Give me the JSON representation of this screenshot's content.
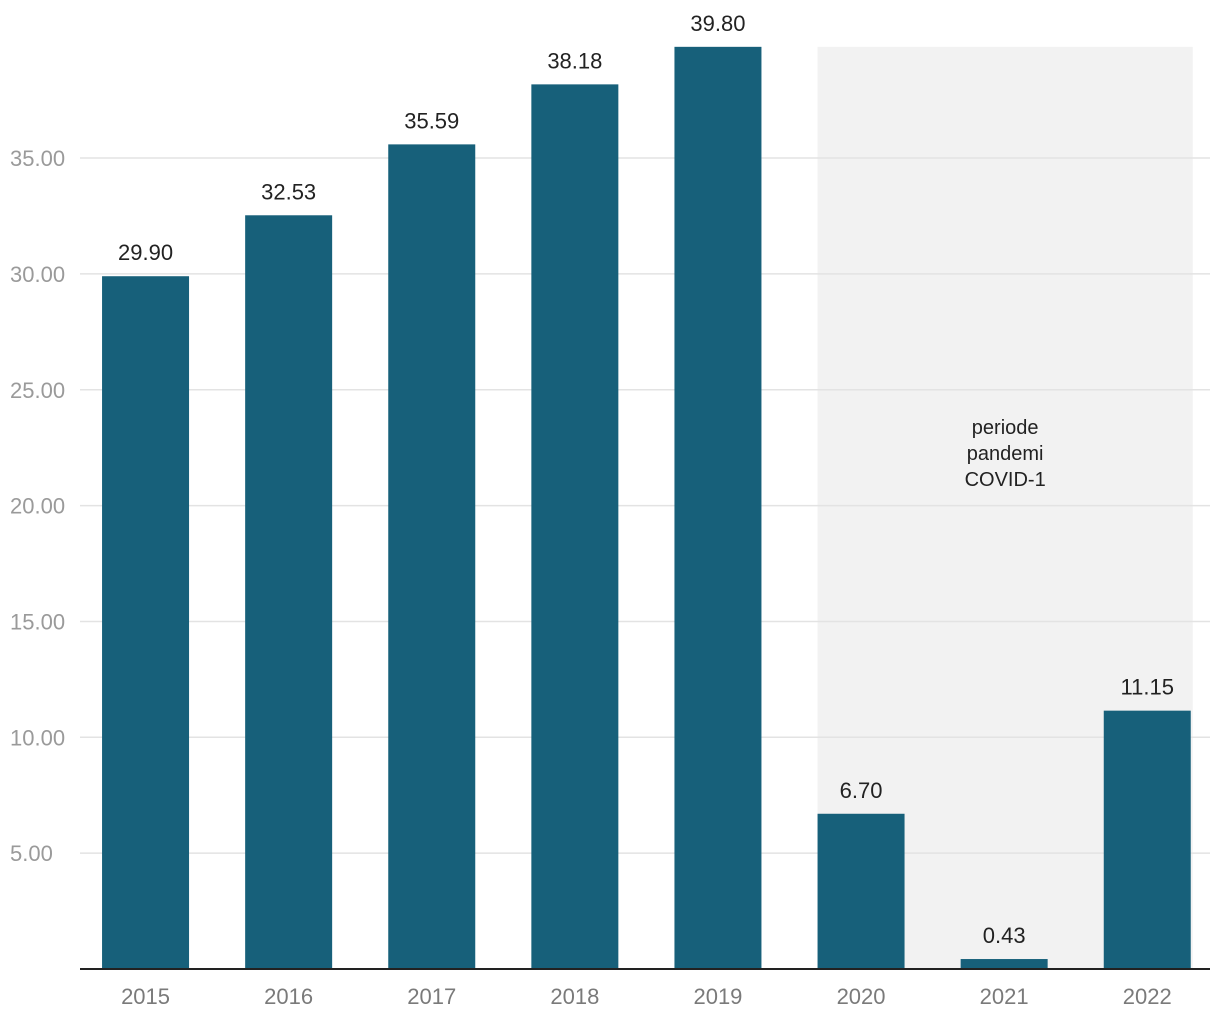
{
  "chart_data": {
    "type": "bar",
    "title": "",
    "xlabel": "",
    "ylabel": "",
    "categories": [
      "2015",
      "2016",
      "2017",
      "2018",
      "2019",
      "2020",
      "2021",
      "2022"
    ],
    "values": [
      29.9,
      32.53,
      35.59,
      38.18,
      39.8,
      6.7,
      0.43,
      11.15
    ],
    "value_labels": [
      "29.90",
      "32.53",
      "35.59",
      "38.18",
      "39.80",
      "6.70",
      "0.43",
      "11.15"
    ],
    "ylim": [
      0,
      39.8
    ],
    "yticks": [
      5,
      10,
      15,
      20,
      25,
      30,
      35
    ],
    "ytick_labels": [
      "5.00",
      "10.00",
      "15.00",
      "20.00",
      "25.00",
      "30.00",
      "35.00"
    ],
    "grid": true,
    "legend": "none",
    "bar_color": "#17607a",
    "shaded_region": {
      "from": "2020",
      "to": "2022",
      "color": "#f2f2f2",
      "label_lines": [
        "periode",
        "pandemi",
        "COVID-1"
      ]
    }
  }
}
